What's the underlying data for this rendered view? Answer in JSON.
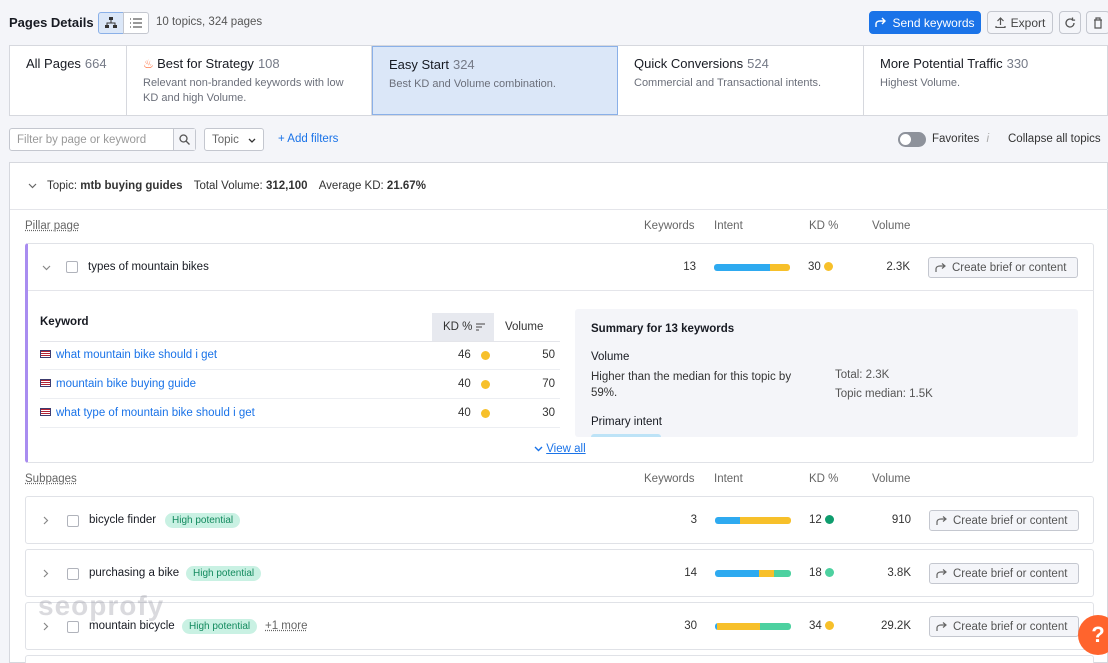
{
  "header": {
    "title": "Pages Details",
    "counts": "10 topics, 324 pages",
    "send_label": "Send keywords",
    "export_label": "Export"
  },
  "tabs": [
    {
      "name": "All Pages",
      "count": "664",
      "desc": ""
    },
    {
      "name": "Best for Strategy",
      "count": "108",
      "desc": "Relevant non-branded keywords with low KD and high Volume."
    },
    {
      "name": "Easy Start",
      "count": "324",
      "desc": "Best KD and Volume combination."
    },
    {
      "name": "Quick Conversions",
      "count": "524",
      "desc": "Commercial and Transactional intents."
    },
    {
      "name": "More Potential Traffic",
      "count": "330",
      "desc": "Highest Volume."
    }
  ],
  "filters": {
    "placeholder": "Filter by page or keyword",
    "topic": "Topic",
    "add": "+ Add filters",
    "favorites": "Favorites",
    "collapse": "Collapse all topics"
  },
  "topic": {
    "label": "Topic:",
    "name": "mtb buying guides",
    "vol_label": "Total Volume:",
    "vol": "312,100",
    "kd_label": "Average KD:",
    "kd": "21.67%"
  },
  "cols": {
    "pillar": "Pillar page",
    "subpages": "Subpages",
    "keywords": "Keywords",
    "intent": "Intent",
    "kd": "KD %",
    "volume": "Volume"
  },
  "pillar": {
    "name": "types of mountain bikes",
    "keywords": "13",
    "kd": "30",
    "volume": "2.3K",
    "action": "Create brief or content",
    "kw_header": {
      "keyword": "Keyword",
      "kd": "KD %",
      "volume": "Volume"
    },
    "rows": [
      {
        "kw": "what mountain bike should i get",
        "kd": "46",
        "vol": "50"
      },
      {
        "kw": "mountain bike buying guide",
        "kd": "40",
        "vol": "70"
      },
      {
        "kw": "what type of mountain bike should i get",
        "kd": "40",
        "vol": "30"
      }
    ],
    "view_all": "View all",
    "summary": {
      "title": "Summary for 13 keywords",
      "vol_h": "Volume",
      "vol_text": "Higher than the median for this topic by 59%.",
      "total": "Total: 2.3K",
      "median": "Topic median: 1.5K",
      "intent_h": "Primary intent"
    }
  },
  "subpages": [
    {
      "name": "bicycle finder",
      "badge": "High potential",
      "more": "",
      "keywords": "3",
      "kd": "12",
      "kdcolor": "#0f9d6e",
      "volume": "910",
      "action": "Create brief or content"
    },
    {
      "name": "purchasing a bike",
      "badge": "High potential",
      "more": "",
      "keywords": "14",
      "kd": "18",
      "kdcolor": "#4dd1a0",
      "volume": "3.8K",
      "action": "Create brief or content"
    },
    {
      "name": "mountain bicycle",
      "badge": "High potential",
      "more": "+1 more",
      "keywords": "30",
      "kd": "34",
      "kdcolor": "#f7c02a",
      "volume": "29.2K",
      "action": "Create brief or content"
    }
  ],
  "watermark": "seoprofy",
  "help": "?",
  "colors": {
    "informational": "#2eaaf0",
    "commercial": "#f7c02a",
    "transactional": "#4dd1a0",
    "navigational": "#9b6ee8",
    "kd_yellow": "#f7c02a"
  }
}
